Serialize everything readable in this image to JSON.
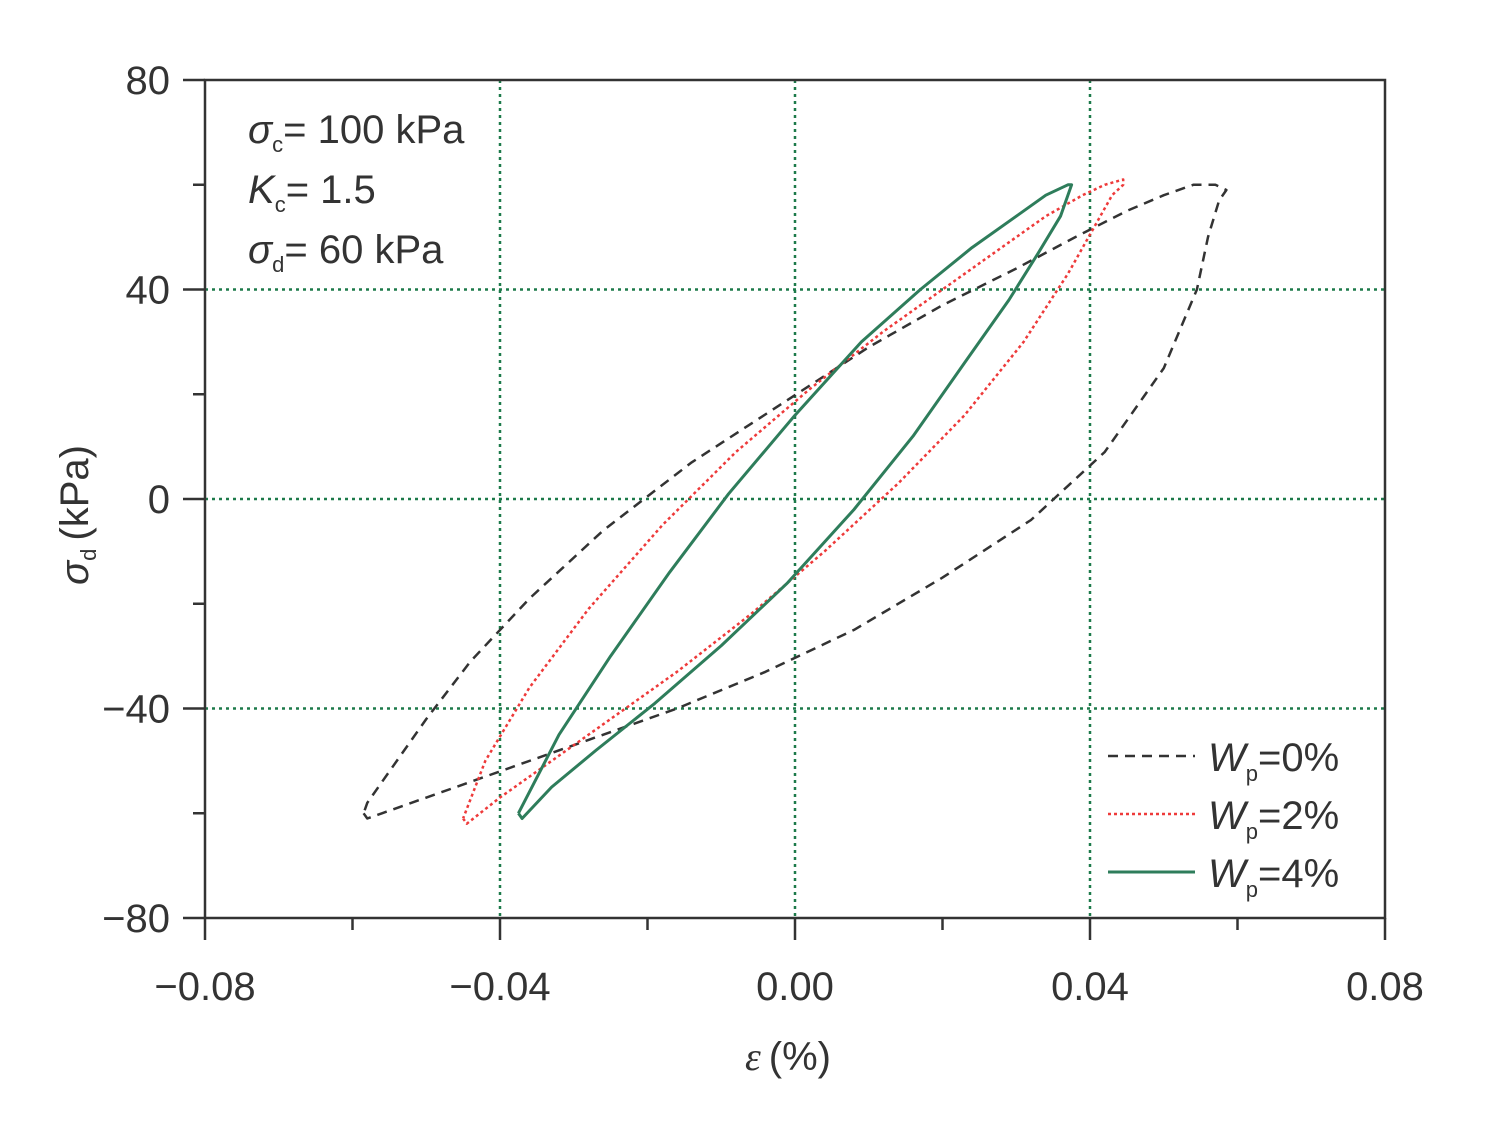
{
  "chart_data": {
    "type": "line",
    "xlabel": {
      "sym": "ε",
      "unit": "(%)"
    },
    "ylabel": {
      "sym": "σ",
      "sub": "d",
      "unit": "(kPa)"
    },
    "xlim": [
      -0.08,
      0.08
    ],
    "ylim": [
      -80,
      80
    ],
    "x_ticks": [
      -0.08,
      -0.04,
      0.0,
      0.04,
      0.08
    ],
    "x_tick_labels": [
      "−0.08",
      "−0.04",
      "0.00",
      "0.04",
      "0.08"
    ],
    "y_ticks": [
      -80,
      -40,
      0,
      40,
      80
    ],
    "y_tick_labels": [
      "−80",
      "−40",
      "0",
      "40",
      "80"
    ],
    "grid_x": [
      -0.04,
      0.0,
      0.04
    ],
    "grid_y": [
      -40,
      0,
      40
    ],
    "grid_color": "#1d7a4a",
    "annotations": [
      {
        "sym": "σ",
        "sub": "c",
        "text": "= 100 kPa"
      },
      {
        "sym": "K",
        "sub": "c",
        "text": "= 1.5"
      },
      {
        "sym": "σ",
        "sub": "d",
        "text": "= 60 kPa"
      }
    ],
    "legend_position": "bottom-right",
    "series": [
      {
        "name": "Wp=0%",
        "label": {
          "sym": "W",
          "sub": "p",
          "text": "=0%"
        },
        "color": "#333333",
        "style": "dashed",
        "x": [
          -0.0585,
          -0.058,
          -0.056,
          -0.052,
          -0.046,
          -0.038,
          -0.028,
          -0.016,
          -0.004,
          0.008,
          0.02,
          0.032,
          0.042,
          0.05,
          0.0545,
          0.056,
          0.0575,
          0.0585,
          0.057,
          0.054,
          0.05,
          0.045,
          0.038,
          0.03,
          0.02,
          0.01,
          -0.002,
          -0.014,
          -0.026,
          -0.036,
          -0.044,
          -0.05,
          -0.055,
          -0.058,
          -0.0585
        ],
        "y": [
          -60,
          -61,
          -60,
          -58,
          -55,
          -51,
          -46,
          -40,
          -33,
          -25,
          -15,
          -4,
          9,
          25,
          40,
          50,
          57,
          59,
          60,
          60,
          58,
          55,
          50,
          44,
          37,
          29,
          18,
          7,
          -6,
          -19,
          -31,
          -42,
          -52,
          -58,
          -60
        ]
      },
      {
        "name": "Wp=2%",
        "label": {
          "sym": "W",
          "sub": "p",
          "text": "=2%"
        },
        "color": "#ee3a3a",
        "style": "dotted",
        "x": [
          -0.045,
          -0.0445,
          -0.04,
          -0.034,
          -0.026,
          -0.016,
          -0.006,
          0.004,
          0.014,
          0.023,
          0.031,
          0.037,
          0.041,
          0.043,
          0.0445,
          0.0445,
          0.042,
          0.039,
          0.034,
          0.028,
          0.02,
          0.012,
          0.002,
          -0.008,
          -0.018,
          -0.028,
          -0.036,
          -0.042,
          -0.045
        ],
        "y": [
          -61,
          -62,
          -57,
          -51,
          -43,
          -33,
          -22,
          -10,
          3,
          16,
          30,
          43,
          53,
          58,
          60,
          61,
          60,
          58,
          54,
          48,
          40,
          32,
          21,
          9,
          -5,
          -21,
          -36,
          -50,
          -61
        ]
      },
      {
        "name": "Wp=4%",
        "label": {
          "sym": "W",
          "sub": "p",
          "text": "=4%"
        },
        "color": "#2e7d5b",
        "style": "solid",
        "x": [
          -0.0375,
          -0.037,
          -0.033,
          -0.027,
          -0.019,
          -0.01,
          -0.001,
          0.008,
          0.016,
          0.023,
          0.029,
          0.033,
          0.036,
          0.0375,
          0.037,
          0.034,
          0.03,
          0.024,
          0.017,
          0.009,
          0.0,
          -0.009,
          -0.017,
          -0.025,
          -0.032,
          -0.0375
        ],
        "y": [
          -60,
          -61,
          -55,
          -48,
          -39,
          -28,
          -16,
          -2,
          12,
          26,
          38,
          47,
          54,
          60,
          60,
          58,
          54,
          48,
          40,
          30,
          16,
          1,
          -14,
          -30,
          -45,
          -60
        ]
      }
    ]
  }
}
